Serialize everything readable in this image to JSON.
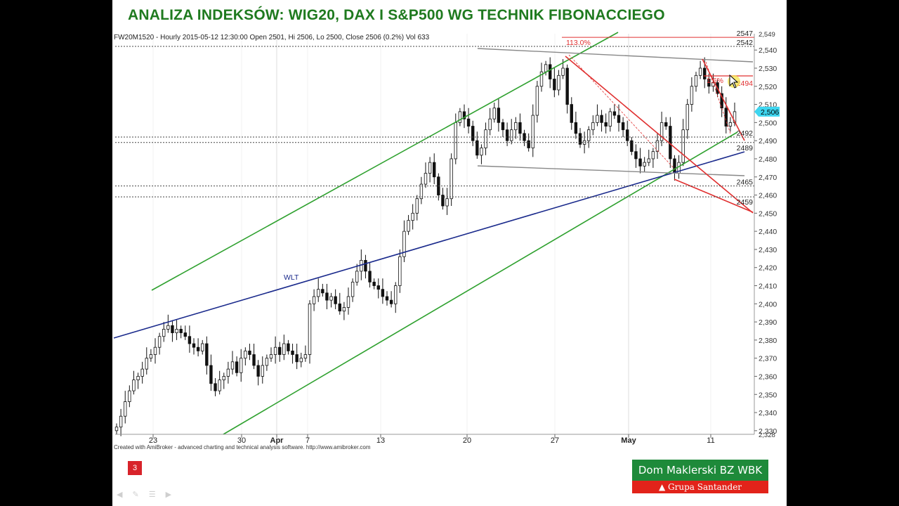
{
  "slide": {
    "title": "ANALIZA INDEKSÓW: WIG20, DAX I S&P500 WG TECHNIK FIBONACCIEGO",
    "credit": "Created with AmiBroker - advanced charting and technical analysis software. http://www.amibroker.com",
    "slide_number": "3",
    "logo_top": "Dom Maklerski BZ WBK",
    "logo_bottom": "Grupa Santander",
    "nav_icons": [
      "back-arrow-icon",
      "pen-icon",
      "menu-icon",
      "forward-arrow-icon"
    ]
  },
  "chart_data": {
    "type": "candlestick",
    "header": "FW20M1520 - Hourly 2015-05-12 12:30:00 Open 2501, Hi 2506, Lo 2500, Close 2506 (0.2%) Vol 633",
    "ylim": [
      2328,
      2549
    ],
    "y_ticks": [
      2330,
      2340,
      2350,
      2360,
      2370,
      2380,
      2390,
      2400,
      2410,
      2420,
      2430,
      2440,
      2450,
      2460,
      2470,
      2480,
      2490,
      2500,
      2510,
      2520,
      2530,
      2540
    ],
    "y_extra_ticks": [
      2328,
      2549
    ],
    "x_labels": [
      {
        "label": "23",
        "bold": false
      },
      {
        "label": "30",
        "bold": false
      },
      {
        "label": "Apr",
        "bold": true
      },
      {
        "label": "7",
        "bold": false
      },
      {
        "label": "13",
        "bold": false
      },
      {
        "label": "20",
        "bold": false
      },
      {
        "label": "27",
        "bold": false
      },
      {
        "label": "May",
        "bold": true
      },
      {
        "label": "11",
        "bold": false
      }
    ],
    "last_price": 2506,
    "level_lines": [
      {
        "value": 2547,
        "label": "2547",
        "color": "#e03030"
      },
      {
        "value": 2542,
        "label": "2542",
        "color": "#444444"
      },
      {
        "value": 2492,
        "label": "2492",
        "color": "#444444"
      },
      {
        "value": 2489,
        "label": "2489",
        "color": "#444444"
      },
      {
        "value": 2465,
        "label": "2465",
        "color": "#444444"
      },
      {
        "value": 2459,
        "label": "2459",
        "color": "#444444"
      }
    ],
    "annotations": [
      {
        "text": "113.0%",
        "color": "#e03030"
      },
      {
        "text": "WLT",
        "color": "#1a2a8c"
      },
      {
        "text": "2494",
        "color": "#e03030"
      },
      {
        "text": "1.6%",
        "color": "#e03030"
      }
    ],
    "closes": [
      2332,
      2338,
      2346,
      2352,
      2358,
      2360,
      2364,
      2370,
      2372,
      2376,
      2382,
      2386,
      2388,
      2384,
      2386,
      2384,
      2382,
      2378,
      2376,
      2374,
      2378,
      2366,
      2356,
      2352,
      2358,
      2360,
      2364,
      2368,
      2362,
      2370,
      2374,
      2372,
      2366,
      2360,
      2366,
      2370,
      2372,
      2376,
      2372,
      2378,
      2374,
      2372,
      2368,
      2370,
      2372,
      2400,
      2404,
      2408,
      2406,
      2402,
      2404,
      2400,
      2396,
      2398,
      2404,
      2412,
      2418,
      2424,
      2418,
      2412,
      2410,
      2408,
      2404,
      2402,
      2400,
      2410,
      2426,
      2440,
      2446,
      2450,
      2458,
      2466,
      2472,
      2478,
      2470,
      2460,
      2454,
      2458,
      2480,
      2500,
      2506,
      2502,
      2498,
      2490,
      2482,
      2486,
      2496,
      2502,
      2508,
      2500,
      2496,
      2490,
      2496,
      2500,
      2494,
      2490,
      2486,
      2504,
      2520,
      2528,
      2532,
      2524,
      2518,
      2526,
      2530,
      2510,
      2500,
      2494,
      2488,
      2490,
      2496,
      2500,
      2504,
      2500,
      2498,
      2506,
      2504,
      2500,
      2496,
      2490,
      2484,
      2480,
      2476,
      2478,
      2480,
      2484,
      2490,
      2500,
      2498,
      2480,
      2472,
      2478,
      2496,
      2510,
      2520,
      2526,
      2530,
      2524,
      2520,
      2522,
      2516,
      2508,
      2498,
      2500,
      2506
    ]
  }
}
